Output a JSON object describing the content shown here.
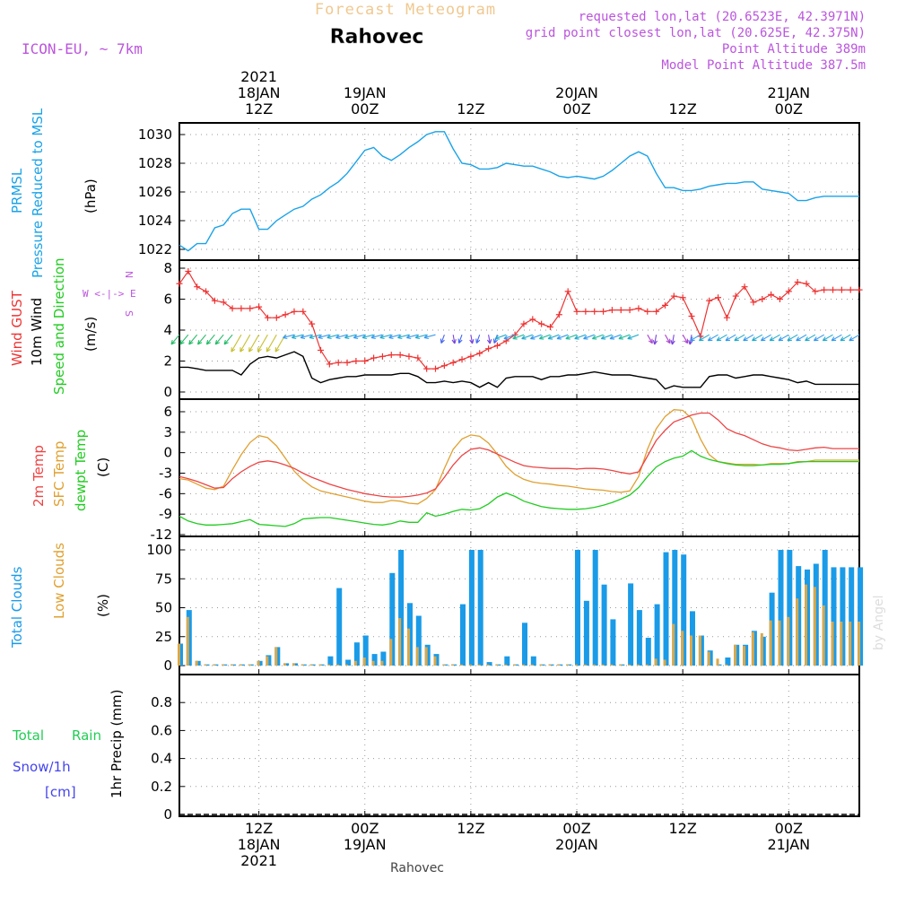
{
  "header": {
    "title": "Forecast Meteogram",
    "location": "Rahovec",
    "model": "ICON-EU, ~ 7km",
    "requested": "requested lon,lat (20.6523E, 42.3971N)",
    "grid_point": "grid point closest lon,lat (20.625E, 42.375N)",
    "point_altitude": "Point Altitude 389m",
    "model_altitude": "Model Point Altitude 387.5m",
    "credit": "by Angel",
    "footer_location": "Rahovec"
  },
  "time_axis": {
    "top_labels": [
      {
        "lines": [
          "2021",
          "18JAN",
          "12Z"
        ],
        "h": 12
      },
      {
        "lines": [
          "19JAN",
          "00Z"
        ],
        "h": 24
      },
      {
        "lines": [
          "12Z"
        ],
        "h": 36
      },
      {
        "lines": [
          "20JAN",
          "00Z"
        ],
        "h": 48
      },
      {
        "lines": [
          "12Z"
        ],
        "h": 60
      },
      {
        "lines": [
          "21JAN",
          "00Z"
        ],
        "h": 72
      }
    ],
    "bottom_labels": [
      {
        "lines": [
          "12Z",
          "18JAN",
          "2021"
        ],
        "h": 12
      },
      {
        "lines": [
          "00Z",
          "19JAN"
        ],
        "h": 24
      },
      {
        "lines": [
          "12Z"
        ],
        "h": 36
      },
      {
        "lines": [
          "00Z",
          "20JAN"
        ],
        "h": 48
      },
      {
        "lines": [
          "12Z"
        ],
        "h": 60
      },
      {
        "lines": [
          "00Z",
          "21JAN"
        ],
        "h": 72
      }
    ]
  },
  "colors": {
    "pressure": "#1aa3e8",
    "gust": "#ee3333",
    "wind": "#000000",
    "temp2m": "#ee4444",
    "sfc": "#e0a030",
    "dewpt": "#22cc22",
    "total_clouds": "#1a9be8",
    "low_clouds": "#d9a84a",
    "rain": "#22cc55",
    "snow": "#4444ee",
    "purple": "#bb55dd",
    "title": "#f0c890"
  },
  "panels": {
    "pressure": {
      "label1": "PRMSL",
      "label2": "Pressure Reduced to MSL",
      "unit": "(hPa)"
    },
    "wind": {
      "label_gust": "Wind GUST",
      "label_wind": "10m Wind",
      "label_dir": "Speed and Direction",
      "unit": "(m/s)",
      "compass_n": "N",
      "compass_s": "S",
      "compass_row": "W <-|-> E"
    },
    "temp": {
      "label1": "2m Temp",
      "label2": "SFC Temp",
      "label3": "dewpt Temp",
      "unit": "(C)"
    },
    "clouds": {
      "label1": "Total Clouds",
      "label2": "Low Clouds",
      "unit": "(%)"
    },
    "precip": {
      "label_total": "Total",
      "label_rain": "Rain",
      "label_snow": "Snow/1h",
      "label_cm": "[cm]",
      "label_axis": "1hr Precip (mm)"
    }
  },
  "chart_data": [
    {
      "type": "line",
      "name": "pressure",
      "x_unit": "hours since 2021-01-18 00Z",
      "x": [
        3,
        4,
        5,
        6,
        7,
        8,
        9,
        10,
        11,
        12,
        13,
        14,
        15,
        16,
        17,
        18,
        19,
        20,
        21,
        22,
        23,
        24,
        25,
        26,
        27,
        28,
        29,
        30,
        31,
        32,
        33,
        34,
        35,
        36,
        37,
        38,
        39,
        40,
        41,
        42,
        43,
        44,
        45,
        46,
        47,
        48,
        49,
        50,
        51,
        52,
        53,
        54,
        55,
        56,
        57,
        58,
        59,
        60,
        61,
        62,
        63,
        64,
        65,
        66,
        67,
        68,
        69,
        70,
        71,
        72,
        73,
        74,
        75,
        76,
        77,
        78,
        79,
        80
      ],
      "series": [
        {
          "name": "PRMSL",
          "values": [
            1022.3,
            1021.9,
            1022.4,
            1022.4,
            1023.5,
            1023.7,
            1024.5,
            1024.8,
            1024.8,
            1023.4,
            1023.4,
            1024.0,
            1024.4,
            1024.8,
            1025.0,
            1025.5,
            1025.8,
            1026.3,
            1026.7,
            1027.3,
            1028.1,
            1028.9,
            1029.1,
            1028.5,
            1028.2,
            1028.6,
            1029.1,
            1029.5,
            1030.0,
            1030.2,
            1030.2,
            1029.0,
            1028.0,
            1027.9,
            1027.6,
            1027.6,
            1027.7,
            1028.0,
            1027.9,
            1027.8,
            1027.8,
            1027.6,
            1027.4,
            1027.1,
            1027.0,
            1027.1,
            1027.0,
            1026.9,
            1027.1,
            1027.5,
            1028.0,
            1028.5,
            1028.8,
            1028.5,
            1027.3,
            1026.3,
            1026.3,
            1026.1,
            1026.1,
            1026.2,
            1026.4,
            1026.5,
            1026.6,
            1026.6,
            1026.7,
            1026.7,
            1026.2,
            1026.1,
            1026.0,
            1025.9,
            1025.4,
            1025.4,
            1025.6,
            1025.7,
            1025.7,
            1025.7,
            1025.7,
            1025.7
          ]
        }
      ],
      "ylim": [
        1021.5,
        1031
      ]
    },
    {
      "type": "line",
      "name": "wind",
      "x_unit": "hours since 2021-01-18 00Z",
      "x": [
        3,
        4,
        5,
        6,
        7,
        8,
        9,
        10,
        11,
        12,
        13,
        14,
        15,
        16,
        17,
        18,
        19,
        20,
        21,
        22,
        23,
        24,
        25,
        26,
        27,
        28,
        29,
        30,
        31,
        32,
        33,
        34,
        35,
        36,
        37,
        38,
        39,
        40,
        41,
        42,
        43,
        44,
        45,
        46,
        47,
        48,
        49,
        50,
        51,
        52,
        53,
        54,
        55,
        56,
        57,
        58,
        59,
        60,
        61,
        62,
        63,
        64,
        65,
        66,
        67,
        68,
        69,
        70,
        71,
        72,
        73,
        74,
        75,
        76,
        77,
        78,
        79,
        80
      ],
      "series": [
        {
          "name": "Wind GUST",
          "values": [
            7.0,
            7.8,
            6.8,
            6.5,
            5.9,
            5.8,
            5.4,
            5.4,
            5.4,
            5.5,
            4.8,
            4.8,
            5.0,
            5.2,
            5.2,
            4.4,
            2.7,
            1.8,
            1.9,
            1.9,
            2.0,
            2.0,
            2.2,
            2.3,
            2.4,
            2.4,
            2.3,
            2.2,
            1.5,
            1.5,
            1.7,
            1.9,
            2.1,
            2.3,
            2.5,
            2.8,
            3.0,
            3.3,
            3.7,
            4.4,
            4.7,
            4.4,
            4.2,
            5.0,
            6.5,
            5.2,
            5.2,
            5.2,
            5.2,
            5.3,
            5.3,
            5.3,
            5.4,
            5.2,
            5.2,
            5.6,
            6.2,
            6.1,
            4.9,
            3.6,
            5.9,
            6.1,
            4.8,
            6.2,
            6.8,
            5.8,
            6.0,
            6.3,
            6.0,
            6.5,
            7.1,
            7.0,
            6.5,
            6.6,
            6.6,
            6.6,
            6.6,
            6.6
          ]
        },
        {
          "name": "10m Wind",
          "values": [
            1.6,
            1.6,
            1.5,
            1.4,
            1.4,
            1.4,
            1.4,
            1.1,
            1.8,
            2.2,
            2.3,
            2.2,
            2.4,
            2.6,
            2.3,
            0.9,
            0.6,
            0.8,
            0.9,
            1.0,
            1.0,
            1.1,
            1.1,
            1.1,
            1.1,
            1.2,
            1.2,
            1.0,
            0.6,
            0.6,
            0.7,
            0.6,
            0.7,
            0.6,
            0.3,
            0.6,
            0.3,
            0.9,
            1.0,
            1.0,
            1.0,
            0.8,
            1.0,
            1.0,
            1.1,
            1.1,
            1.2,
            1.3,
            1.2,
            1.1,
            1.1,
            1.1,
            1.0,
            0.9,
            0.8,
            0.2,
            0.4,
            0.3,
            0.3,
            0.3,
            1.0,
            1.1,
            1.1,
            0.9,
            1.0,
            1.1,
            1.1,
            1.0,
            0.9,
            0.8,
            0.6,
            0.7,
            0.5,
            0.5,
            0.5,
            0.5,
            0.5,
            0.5
          ]
        }
      ],
      "ylim": [
        -0.3,
        8.5
      ]
    },
    {
      "type": "line",
      "name": "temperature",
      "x_unit": "hours since 2021-01-18 00Z",
      "x": [
        3,
        4,
        5,
        6,
        7,
        8,
        9,
        10,
        11,
        12,
        13,
        14,
        15,
        16,
        17,
        18,
        19,
        20,
        21,
        22,
        23,
        24,
        25,
        26,
        27,
        28,
        29,
        30,
        31,
        32,
        33,
        34,
        35,
        36,
        37,
        38,
        39,
        40,
        41,
        42,
        43,
        44,
        45,
        46,
        47,
        48,
        49,
        50,
        51,
        52,
        53,
        54,
        55,
        56,
        57,
        58,
        59,
        60,
        61,
        62,
        63,
        64,
        65,
        66,
        67,
        68,
        69,
        70,
        71,
        72,
        73,
        74,
        75,
        76,
        77,
        78,
        79,
        80
      ],
      "series": [
        {
          "name": "2m Temp",
          "values": [
            -3.5,
            -3.8,
            -4.2,
            -4.7,
            -5.2,
            -5.1,
            -3.8,
            -2.8,
            -2.0,
            -1.4,
            -1.2,
            -1.4,
            -1.8,
            -2.3,
            -3.0,
            -3.6,
            -4.1,
            -4.6,
            -5.0,
            -5.4,
            -5.7,
            -6.0,
            -6.2,
            -6.4,
            -6.5,
            -6.5,
            -6.4,
            -6.2,
            -5.9,
            -5.3,
            -3.6,
            -1.8,
            -0.4,
            0.5,
            0.7,
            0.4,
            -0.2,
            -0.8,
            -1.4,
            -1.9,
            -2.1,
            -2.2,
            -2.3,
            -2.3,
            -2.3,
            -2.4,
            -2.3,
            -2.3,
            -2.4,
            -2.6,
            -2.9,
            -3.1,
            -2.8,
            -0.5,
            1.8,
            3.3,
            4.5,
            5.0,
            5.5,
            5.8,
            5.8,
            4.8,
            3.5,
            2.9,
            2.5,
            1.9,
            1.3,
            0.9,
            0.7,
            0.4,
            0.3,
            0.5,
            0.7,
            0.8,
            0.6,
            0.6,
            0.6,
            0.6
          ]
        },
        {
          "name": "SFC Temp",
          "values": [
            -3.8,
            -4.0,
            -4.6,
            -5.2,
            -5.4,
            -4.9,
            -2.5,
            -0.3,
            1.5,
            2.5,
            2.2,
            1.0,
            -0.8,
            -2.7,
            -4.0,
            -5.0,
            -5.6,
            -5.9,
            -6.2,
            -6.5,
            -6.8,
            -7.1,
            -7.3,
            -7.3,
            -7.0,
            -7.1,
            -7.4,
            -7.5,
            -6.7,
            -5.4,
            -2.3,
            0.5,
            2.0,
            2.6,
            2.4,
            1.4,
            -0.2,
            -2.0,
            -3.2,
            -3.9,
            -4.3,
            -4.5,
            -4.6,
            -4.8,
            -4.9,
            -5.1,
            -5.3,
            -5.4,
            -5.5,
            -5.7,
            -5.8,
            -5.6,
            -3.5,
            0.5,
            3.5,
            5.3,
            6.3,
            6.2,
            5.0,
            2.0,
            -0.3,
            -1.3,
            -1.5,
            -1.7,
            -1.7,
            -1.7,
            -1.8,
            -1.6,
            -1.6,
            -1.6,
            -1.3,
            -1.3,
            -1.1,
            -1.1,
            -1.1,
            -1.1,
            -1.1,
            -1.1
          ]
        },
        {
          "name": "dewpt Temp",
          "values": [
            -9.3,
            -10.0,
            -10.4,
            -10.6,
            -10.6,
            -10.5,
            -10.4,
            -10.1,
            -9.8,
            -10.5,
            -10.6,
            -10.7,
            -10.8,
            -10.4,
            -9.7,
            -9.6,
            -9.5,
            -9.5,
            -9.7,
            -9.9,
            -10.1,
            -10.3,
            -10.5,
            -10.6,
            -10.4,
            -10.0,
            -10.2,
            -10.2,
            -8.8,
            -9.3,
            -9.0,
            -8.6,
            -8.3,
            -8.4,
            -8.2,
            -7.5,
            -6.5,
            -5.9,
            -6.4,
            -7.1,
            -7.5,
            -7.9,
            -8.1,
            -8.2,
            -8.3,
            -8.3,
            -8.2,
            -8.0,
            -7.7,
            -7.3,
            -6.8,
            -6.2,
            -5.1,
            -3.5,
            -2.1,
            -1.3,
            -0.8,
            -0.5,
            0.3,
            -0.5,
            -1.0,
            -1.3,
            -1.6,
            -1.8,
            -1.9,
            -1.9,
            -1.8,
            -1.7,
            -1.7,
            -1.6,
            -1.4,
            -1.3,
            -1.3,
            -1.3,
            -1.3,
            -1.3,
            -1.3,
            -1.3
          ]
        }
      ],
      "ylim": [
        -12,
        7
      ]
    },
    {
      "type": "bar",
      "name": "clouds",
      "x_unit": "hours since 2021-01-18 00Z",
      "x": [
        3,
        4,
        5,
        6,
        7,
        8,
        9,
        10,
        11,
        12,
        13,
        14,
        15,
        16,
        17,
        18,
        19,
        20,
        21,
        22,
        23,
        24,
        25,
        26,
        27,
        28,
        29,
        30,
        31,
        32,
        33,
        34,
        35,
        36,
        37,
        38,
        39,
        40,
        41,
        42,
        43,
        44,
        45,
        46,
        47,
        48,
        49,
        50,
        51,
        52,
        53,
        54,
        55,
        56,
        57,
        58,
        59,
        60,
        61,
        62,
        63,
        64,
        65,
        66,
        67,
        68,
        69,
        70,
        71,
        72,
        73,
        74,
        75,
        76,
        77,
        78,
        79,
        80
      ],
      "series": [
        {
          "name": "Total Clouds",
          "values": [
            19,
            48,
            4,
            1,
            1,
            1,
            1,
            1,
            1,
            4,
            9,
            16,
            2,
            2,
            1,
            1,
            1,
            8,
            67,
            5,
            20,
            26,
            10,
            12,
            80,
            100,
            54,
            43,
            18,
            10,
            1,
            1,
            53,
            100,
            100,
            3,
            1,
            8,
            1,
            37,
            8,
            1,
            1,
            1,
            1,
            100,
            56,
            100,
            70,
            40,
            1,
            71,
            48,
            24,
            53,
            98,
            100,
            96,
            47,
            26,
            13,
            1,
            7,
            18,
            18,
            30,
            25,
            63,
            100,
            100,
            86,
            83,
            88,
            100,
            85,
            85,
            85,
            85
          ]
        },
        {
          "name": "Low Clouds",
          "values": [
            19,
            42,
            4,
            1,
            1,
            1,
            1,
            1,
            1,
            4,
            8,
            16,
            2,
            2,
            1,
            1,
            1,
            1,
            1,
            1,
            4,
            7,
            4,
            4,
            23,
            41,
            32,
            16,
            16,
            8,
            1,
            1,
            1,
            1,
            1,
            1,
            1,
            1,
            1,
            1,
            1,
            1,
            1,
            1,
            1,
            1,
            1,
            1,
            1,
            1,
            1,
            1,
            1,
            1,
            6,
            5,
            36,
            30,
            26,
            26,
            12,
            6,
            1,
            18,
            17,
            29,
            28,
            39,
            39,
            42,
            58,
            70,
            68,
            52,
            38,
            38,
            38,
            38
          ]
        }
      ],
      "ylim": [
        0,
        105
      ]
    },
    {
      "type": "bar",
      "name": "precip",
      "x_unit": "hours since 2021-01-18 00Z",
      "series": [
        {
          "name": "1hr Precip (mm)",
          "values": []
        }
      ],
      "ylim": [
        0,
        1
      ]
    }
  ]
}
